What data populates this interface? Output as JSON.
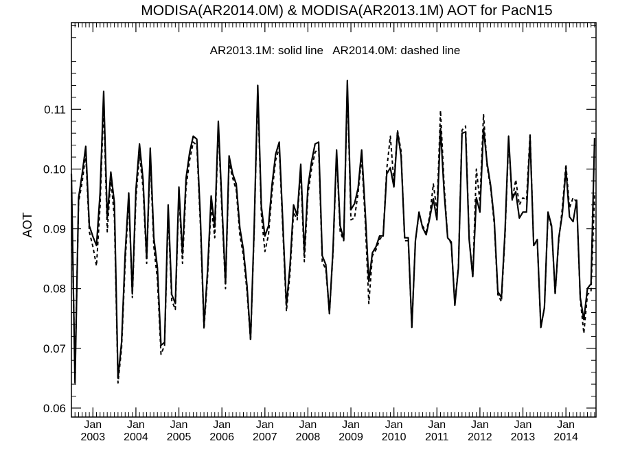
{
  "chart_data": {
    "type": "line",
    "title": "MODISA(AR2014.0M) & MODISA(AR2013.1M)  AOT for PacN15",
    "annotation": "AR2013.1M: solid line   AR2014.0M: dashed line",
    "xlabel": "",
    "ylabel": "AOT",
    "ylim": [
      0.0585,
      0.1245
    ],
    "y_ticks": [
      "0.06",
      "0.07",
      "0.08",
      "0.09",
      "0.10",
      "0.11"
    ],
    "x_month_label": "Jan",
    "x_year_labels": [
      "2003",
      "2004",
      "2005",
      "2006",
      "2007",
      "2008",
      "2009",
      "2010",
      "2011",
      "2012",
      "2013",
      "2014"
    ],
    "grid": false,
    "x_start": "2002-07",
    "series": [
      {
        "name": "AR2013.1M",
        "style": "solid",
        "values": [
          0.0992,
          0.0642,
          0.0952,
          0.0992,
          0.1038,
          0.0905,
          0.0887,
          0.0872,
          0.096,
          0.113,
          0.0918,
          0.0995,
          0.0943,
          0.065,
          0.071,
          0.0858,
          0.096,
          0.0791,
          0.0965,
          0.1042,
          0.0982,
          0.085,
          0.1035,
          0.0885,
          0.0835,
          0.0705,
          0.071,
          0.094,
          0.079,
          0.0775,
          0.097,
          0.0858,
          0.0985,
          0.1028,
          0.1055,
          0.105,
          0.0918,
          0.0738,
          0.083,
          0.0955,
          0.0903,
          0.108,
          0.0942,
          0.0808,
          0.1022,
          0.0992,
          0.0975,
          0.0902,
          0.0865,
          0.0805,
          0.0715,
          0.0902,
          0.114,
          0.0938,
          0.0888,
          0.0905,
          0.0975,
          0.1025,
          0.1045,
          0.091,
          0.0772,
          0.0838,
          0.094,
          0.0922,
          0.1008,
          0.086,
          0.097,
          0.1012,
          0.1042,
          0.1045,
          0.0855,
          0.084,
          0.0758,
          0.0865,
          0.1032,
          0.0905,
          0.0882,
          0.1148,
          0.0932,
          0.0942,
          0.0968,
          0.1032,
          0.0928,
          0.0812,
          0.086,
          0.087,
          0.0888,
          0.0888,
          0.0992,
          0.1002,
          0.097,
          0.1062,
          0.1022,
          0.0885,
          0.0885,
          0.0735,
          0.088,
          0.0928,
          0.0902,
          0.089,
          0.0918,
          0.095,
          0.0915,
          0.1068,
          0.0962,
          0.0885,
          0.0878,
          0.0772,
          0.0835,
          0.106,
          0.1062,
          0.0882,
          0.082,
          0.0952,
          0.0928,
          0.1068,
          0.101,
          0.0972,
          0.0915,
          0.0795,
          0.0785,
          0.0895,
          0.1055,
          0.095,
          0.0962,
          0.0918,
          0.0928,
          0.0928,
          0.1052,
          0.0872,
          0.0882,
          0.0735,
          0.0768,
          0.0928,
          0.0905,
          0.0792,
          0.0885,
          0.0925,
          0.1,
          0.092,
          0.0912,
          0.0948,
          0.0785,
          0.0748,
          0.08,
          0.0808,
          0.1052
        ]
      },
      {
        "name": "AR2014.0M",
        "style": "dashed",
        "values": [
          0.097,
          0.0655,
          0.0945,
          0.0978,
          0.1025,
          0.0895,
          0.087,
          0.0838,
          0.0938,
          0.1108,
          0.0895,
          0.0985,
          0.0918,
          0.0642,
          0.07,
          0.0842,
          0.095,
          0.0785,
          0.095,
          0.1025,
          0.0968,
          0.0842,
          0.102,
          0.087,
          0.0815,
          0.069,
          0.0705,
          0.0925,
          0.078,
          0.0765,
          0.096,
          0.0842,
          0.097,
          0.1015,
          0.1045,
          0.104,
          0.0905,
          0.0732,
          0.082,
          0.094,
          0.0885,
          0.107,
          0.093,
          0.08,
          0.101,
          0.0985,
          0.0965,
          0.089,
          0.0855,
          0.0795,
          0.0712,
          0.0895,
          0.113,
          0.0925,
          0.0862,
          0.089,
          0.0962,
          0.1015,
          0.1035,
          0.0898,
          0.0762,
          0.0825,
          0.0928,
          0.0915,
          0.0995,
          0.0845,
          0.0958,
          0.1,
          0.1028,
          0.1035,
          0.0845,
          0.0832,
          0.0758,
          0.0858,
          0.1025,
          0.0895,
          0.088,
          0.114,
          0.0915,
          0.0918,
          0.096,
          0.102,
          0.0912,
          0.0775,
          0.0855,
          0.0865,
          0.0882,
          0.089,
          0.1,
          0.1055,
          0.0978,
          0.1065,
          0.103,
          0.088,
          0.088,
          0.0735,
          0.088,
          0.0925,
          0.0905,
          0.0895,
          0.0922,
          0.0975,
          0.093,
          0.1098,
          0.0975,
          0.0885,
          0.0875,
          0.0775,
          0.0838,
          0.1065,
          0.1072,
          0.0885,
          0.0818,
          0.1,
          0.0945,
          0.1092,
          0.1005,
          0.0968,
          0.0908,
          0.079,
          0.0778,
          0.0888,
          0.1048,
          0.0948,
          0.0982,
          0.094,
          0.0952,
          0.0948,
          0.106,
          0.0872,
          0.088,
          0.0735,
          0.0768,
          0.0925,
          0.0902,
          0.079,
          0.088,
          0.0935,
          0.1008,
          0.0935,
          0.0952,
          0.0945,
          0.0782,
          0.0725,
          0.079,
          0.0795,
          0.096
        ]
      }
    ]
  }
}
